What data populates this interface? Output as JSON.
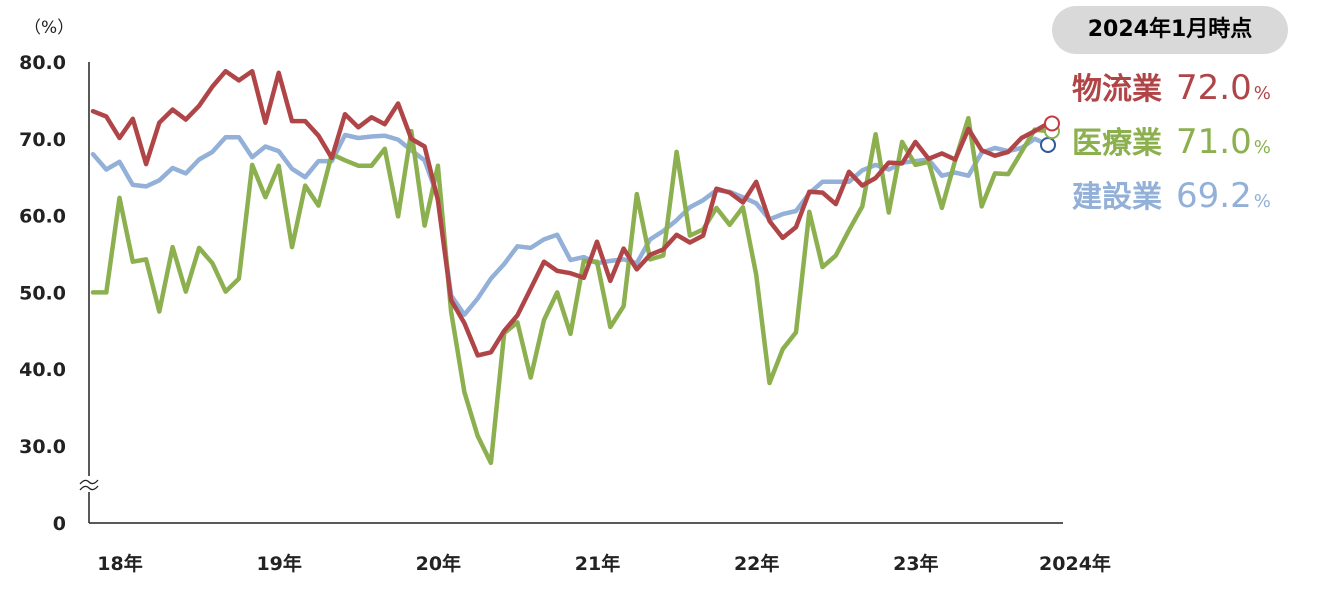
{
  "chart_data": {
    "type": "line",
    "unit_label": "（%）",
    "y_ticks": [
      "80.0",
      "70.0",
      "60.0",
      "50.0",
      "40.0",
      "30.0",
      "0"
    ],
    "ylim": [
      30,
      80
    ],
    "y_axis_break": true,
    "x_tick_labels": [
      "18年",
      "19年",
      "20年",
      "21年",
      "22年",
      "23年",
      "2024年"
    ],
    "x_start": "2018-01",
    "x_end": "2024-01",
    "grid": false,
    "legend_title": "2024年1月時点",
    "legend_position": "top-right",
    "series": [
      {
        "name": "物流業",
        "color": "#b04548",
        "latest_value": "72.0",
        "latest_unit": "%",
        "values": [
          73.6,
          72.9,
          70.1,
          72.6,
          66.7,
          72.1,
          73.8,
          72.5,
          74.3,
          76.8,
          78.8,
          77.6,
          78.8,
          72.1,
          78.6,
          72.3,
          72.3,
          70.4,
          67.5,
          73.2,
          71.5,
          72.8,
          71.9,
          74.6,
          70.0,
          69.0,
          62.0,
          49.0,
          46.0,
          41.8,
          42.2,
          45.0,
          47.0,
          50.5,
          54.0,
          52.8,
          52.5,
          51.9,
          56.6,
          51.5,
          55.7,
          53.0,
          54.9,
          55.6,
          57.5,
          56.5,
          57.4,
          63.5,
          63.0,
          61.7,
          64.4,
          59.3,
          57.1,
          58.5,
          63.1,
          63.0,
          61.5,
          65.7,
          63.9,
          64.9,
          66.9,
          66.8,
          69.6,
          67.4,
          68.1,
          67.3,
          71.3,
          68.5,
          67.8,
          68.3,
          70.1,
          71.0,
          72.0
        ]
      },
      {
        "name": "医療業",
        "color": "#8cb04f",
        "latest_value": "71.0",
        "latest_unit": "%",
        "values": [
          50.0,
          50.0,
          62.3,
          54.0,
          54.3,
          47.5,
          55.9,
          50.1,
          55.8,
          53.8,
          50.1,
          51.8,
          66.6,
          62.4,
          66.5,
          55.9,
          63.9,
          61.3,
          68.0,
          67.2,
          66.5,
          66.5,
          68.7,
          59.9,
          71.0,
          58.7,
          66.5,
          47.5,
          37.0,
          31.3,
          27.8,
          44.7,
          46.1,
          38.9,
          46.4,
          50.0,
          44.6,
          54.1,
          54.0,
          45.5,
          48.2,
          62.8,
          54.3,
          54.8,
          68.3,
          57.4,
          58.2,
          61.0,
          58.8,
          61.1,
          52.3,
          38.2,
          42.6,
          44.8,
          60.5,
          53.3,
          54.8,
          58.1,
          61.2,
          70.6,
          60.4,
          69.6,
          66.6,
          67.0,
          61.0,
          67.2,
          72.7,
          61.2,
          65.5,
          65.4,
          68.3,
          71.2,
          71.0
        ]
      },
      {
        "name": "建設業",
        "color": "#92b0d8",
        "latest_value": "69.2",
        "latest_unit": "%",
        "values": [
          68.0,
          66.0,
          67.0,
          64.0,
          63.8,
          64.6,
          66.2,
          65.5,
          67.3,
          68.3,
          70.2,
          70.2,
          67.6,
          69.0,
          68.4,
          66.1,
          65.0,
          67.1,
          67.1,
          70.5,
          70.1,
          70.3,
          70.4,
          69.9,
          68.5,
          67.2,
          62.4,
          49.6,
          47.1,
          49.2,
          51.8,
          53.7,
          56.0,
          55.8,
          56.9,
          57.5,
          54.2,
          54.6,
          53.8,
          54.1,
          54.3,
          53.8,
          56.9,
          58.0,
          59.4,
          61.1,
          62.0,
          63.3,
          63.1,
          62.4,
          61.6,
          59.5,
          60.2,
          60.6,
          62.9,
          64.4,
          64.4,
          64.4,
          65.9,
          66.6,
          66.0,
          66.9,
          67.1,
          67.3,
          65.2,
          65.6,
          65.2,
          68.2,
          68.8,
          68.4,
          68.8,
          70.0,
          69.2
        ]
      }
    ]
  }
}
